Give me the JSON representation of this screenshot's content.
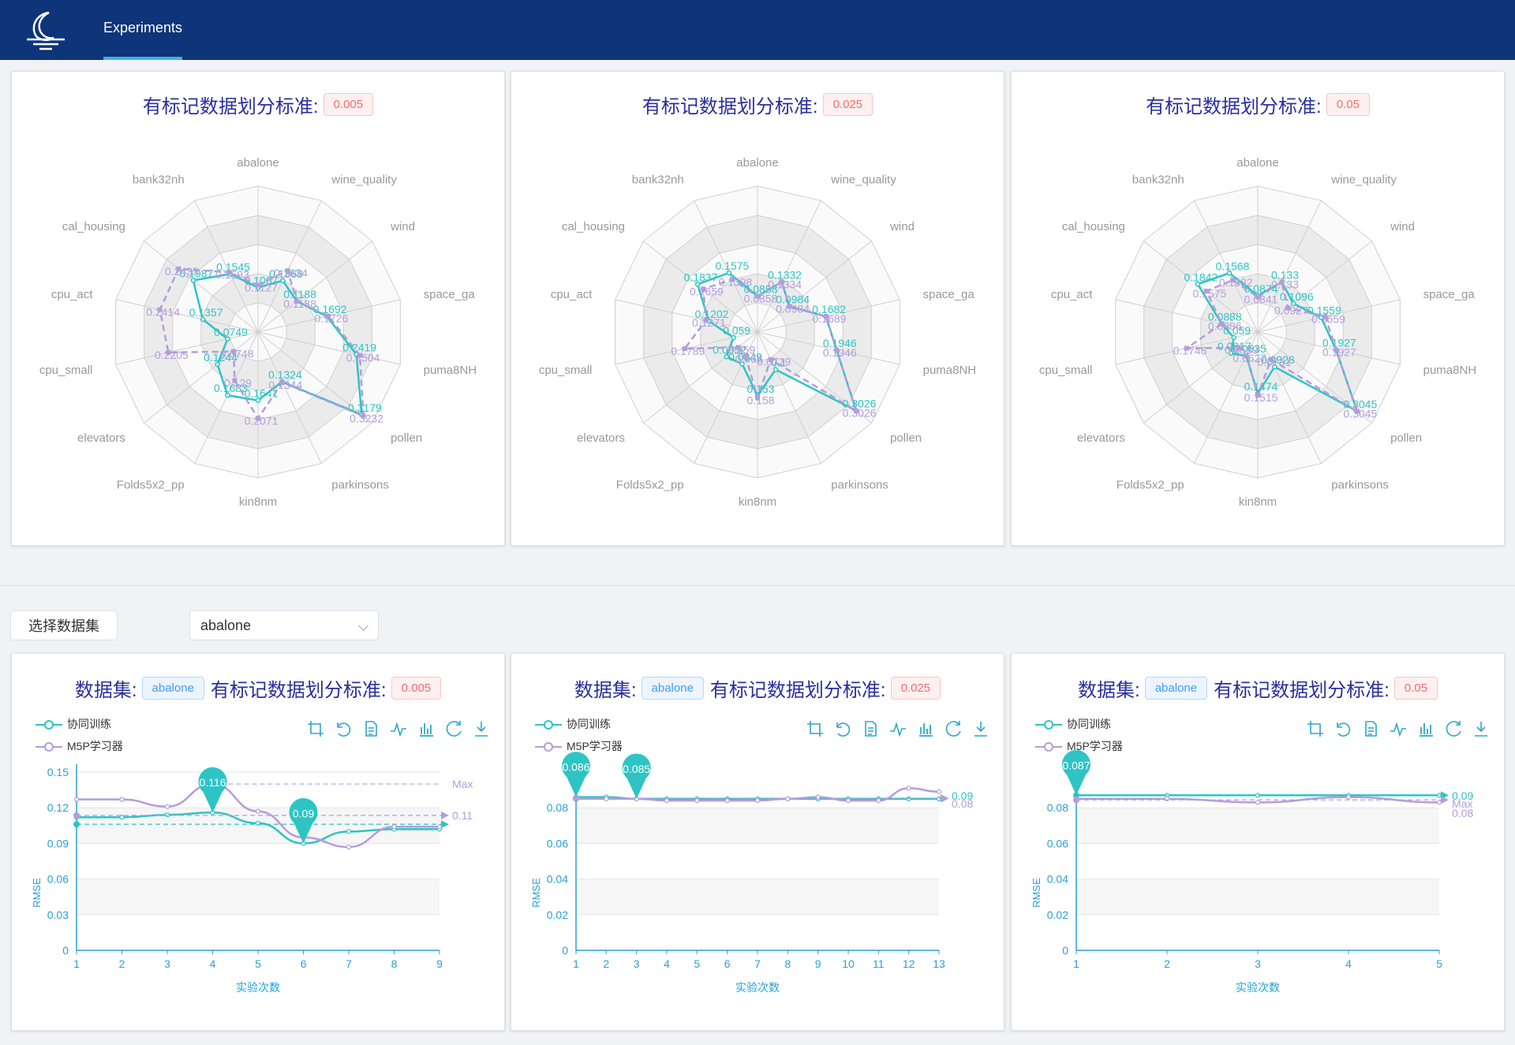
{
  "header": {
    "tab_label": "Experiments"
  },
  "colors": {
    "teal": "#2ec4c4",
    "purple": "#b39ddb",
    "nav": "#0e347a"
  },
  "radar_title_label": "有标记数据划分标准:",
  "dataset_label": "数据集:",
  "controls": {
    "select_button": "选择数据集",
    "selected_dataset": "abalone"
  },
  "legend": {
    "series1": "协同训练",
    "series2": "M5P学习器"
  },
  "axes": {
    "ylabel": "RMSE",
    "xlabel": "实验次数"
  },
  "toolbox_icons": [
    "crop-icon",
    "undo-icon",
    "data-view-icon",
    "line-chart-icon",
    "bar-chart-icon",
    "restore-icon",
    "download-icon"
  ],
  "chart_data": [
    {
      "type": "radar",
      "badge": "0.005",
      "indicators": [
        "abalone",
        "wine_quality",
        "wind",
        "space_ga",
        "puma8NH",
        "pollen",
        "parkinsons",
        "kin8nm",
        "Folds5x2_pp",
        "elevators",
        "cpu_small",
        "cpu_act",
        "cal_housing",
        "bank32nh"
      ],
      "series": [
        {
          "name": "协同训练",
          "values": [
            0.1067,
            0.1368,
            0.1188,
            0.1692,
            0.2419,
            0.3179,
            0.1324,
            0.1641,
            0.1683,
            0.1244,
            0.0749,
            0.1357,
            0.1987,
            0.1545
          ]
        },
        {
          "name": "M5P学习器",
          "values": [
            0.1127,
            0.1634,
            0.1188,
            0.1726,
            0.2504,
            0.3232,
            0.1344,
            0.2071,
            0.129,
            0.0748,
            0.2205,
            0.2414,
            0.2435,
            0.1593
          ]
        }
      ]
    },
    {
      "type": "radar",
      "badge": "0.025",
      "indicators": [
        "abalone",
        "wine_quality",
        "wind",
        "space_ga",
        "puma8NH",
        "pollen",
        "parkinsons",
        "kin8nm",
        "Folds5x2_pp",
        "elevators",
        "cpu_small",
        "cpu_act",
        "cal_housing",
        "bank32nh"
      ],
      "series": [
        {
          "name": "协同训练",
          "values": [
            0.0858,
            0.1332,
            0.0984,
            0.1682,
            0.1946,
            0.3026,
            0.1,
            0.153,
            0.0849,
            0.0952,
            0.059,
            0.1202,
            0.1837,
            0.1575
          ]
        },
        {
          "name": "M5P学习器",
          "values": [
            0.0858,
            0.1334,
            0.0984,
            0.1689,
            0.1946,
            0.3026,
            0.0729,
            0.158,
            0.065,
            0.059,
            0.1789,
            0.1271,
            0.1659,
            0.1398
          ]
        }
      ]
    },
    {
      "type": "radar",
      "badge": "0.05",
      "indicators": [
        "abalone",
        "wine_quality",
        "wind",
        "space_ga",
        "puma8NH",
        "pollen",
        "parkinsons",
        "kin8nm",
        "Folds5x2_pp",
        "elevators",
        "cpu_small",
        "cpu_act",
        "cal_housing",
        "bank32nh"
      ],
      "series": [
        {
          "name": "协同训练",
          "values": [
            0.0874,
            0.133,
            0.1096,
            0.1559,
            0.1927,
            0.3045,
            0.0928,
            0.1474,
            0.0635,
            0.0817,
            0.059,
            0.0888,
            0.1842,
            0.1568
          ]
        },
        {
          "name": "M5P学习器",
          "values": [
            0.0841,
            0.133,
            0.0927,
            0.1659,
            0.1927,
            0.3045,
            0.0731,
            0.1515,
            0.0627,
            0.0599,
            0.1746,
            0.0886,
            0.1575,
            0.1382
          ]
        }
      ]
    },
    {
      "type": "line",
      "badge": "0.005",
      "dataset": "abalone",
      "x": [
        1,
        2,
        3,
        4,
        5,
        6,
        7,
        8,
        9
      ],
      "ylim": [
        0,
        0.15
      ],
      "yticks": [
        "0",
        "0.03",
        "0.06",
        "0.09",
        "0.12",
        "0.15"
      ],
      "series": [
        {
          "name": "协同训练",
          "values": [
            0.112,
            0.112,
            0.114,
            0.116,
            0.107,
            0.09,
            0.1,
            0.102,
            0.102
          ]
        },
        {
          "name": "M5P学习器",
          "values": [
            0.127,
            0.127,
            0.121,
            0.14,
            0.117,
            0.095,
            0.087,
            0.104,
            0.104
          ]
        }
      ],
      "max_labels": [
        "Max",
        "0.11"
      ],
      "pins": [
        {
          "x": 4,
          "value": "0.116"
        },
        {
          "x": 6,
          "value": "0.09"
        }
      ]
    },
    {
      "type": "line",
      "badge": "0.025",
      "dataset": "abalone",
      "x": [
        1,
        2,
        3,
        4,
        5,
        6,
        7,
        8,
        9,
        10,
        11,
        12,
        13
      ],
      "ylim": [
        0,
        0.1
      ],
      "yticks": [
        "0",
        "0.02",
        "0.04",
        "0.06",
        "0.08"
      ],
      "series": [
        {
          "name": "协同训练",
          "values": [
            0.086,
            0.086,
            0.085,
            0.085,
            0.085,
            0.085,
            0.085,
            0.085,
            0.085,
            0.085,
            0.085,
            0.085,
            0.085
          ]
        },
        {
          "name": "M5P学习器",
          "values": [
            0.085,
            0.085,
            0.085,
            0.084,
            0.084,
            0.084,
            0.084,
            0.085,
            0.086,
            0.084,
            0.084,
            0.091,
            0.089
          ]
        }
      ],
      "max_labels": [
        "0.09",
        "0.08"
      ],
      "pins": [
        {
          "x": 1,
          "value": "0.086"
        },
        {
          "x": 3,
          "value": "0.085"
        }
      ]
    },
    {
      "type": "line",
      "badge": "0.05",
      "dataset": "abalone",
      "x": [
        1,
        2,
        3,
        4,
        5
      ],
      "ylim": [
        0,
        0.1
      ],
      "yticks": [
        "0",
        "0.02",
        "0.04",
        "0.06",
        "0.08"
      ],
      "series": [
        {
          "name": "协同训练",
          "values": [
            0.087,
            0.087,
            0.087,
            0.087,
            0.087
          ]
        },
        {
          "name": "M5P学习器",
          "values": [
            0.085,
            0.085,
            0.083,
            0.086,
            0.083
          ]
        }
      ],
      "max_labels": [
        "0.09",
        "Max",
        "0.08"
      ],
      "pins": [
        {
          "x": 1,
          "value": "0.087"
        }
      ]
    }
  ]
}
